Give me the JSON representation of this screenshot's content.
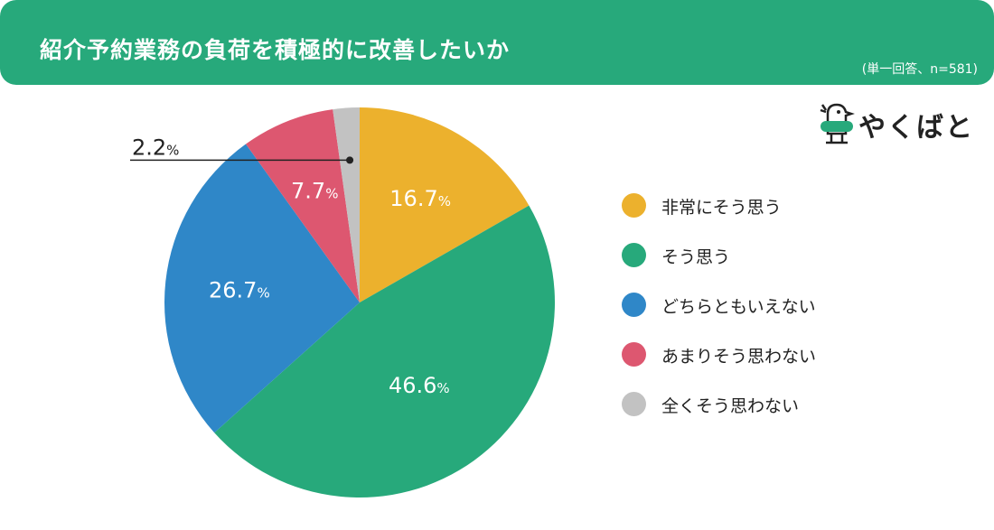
{
  "header": {
    "title": "紹介予約業務の負荷を積極的に改善したいか",
    "note": "(単一回答、n=581)"
  },
  "logo": {
    "text": "やくばと",
    "icon": "bird-icon"
  },
  "chart_data": {
    "type": "pie",
    "categories": [
      "非常にそう思う",
      "そう思う",
      "どちらともいえない",
      "あまりそう思わない",
      "全くそう思わない"
    ],
    "values": [
      16.7,
      46.6,
      26.7,
      7.7,
      2.2
    ],
    "labels": [
      "16.7",
      "46.6",
      "26.7",
      "7.7",
      "2.2"
    ],
    "unit": "%",
    "colors": [
      "#ecb12d",
      "#27a97b",
      "#2f87c8",
      "#dd5770",
      "#c2c2c2"
    ],
    "start": "12 o'clock, clockwise",
    "legend_position": "right"
  }
}
